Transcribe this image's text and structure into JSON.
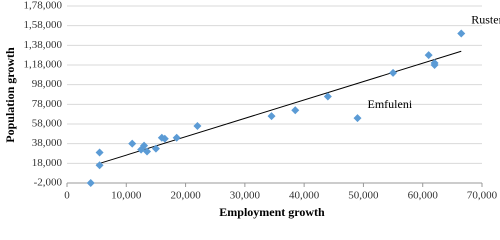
{
  "chart_data": {
    "type": "scatter",
    "x_label": "Employment growth",
    "y_label": "Population growth",
    "series": [
      {
        "color": "#5b9bd5",
        "x": [
          4000,
          5500,
          5500,
          11000,
          12500,
          13000,
          13500,
          15000,
          16000,
          16500,
          18500,
          22000,
          34500,
          38500,
          44000,
          49000,
          55000,
          61000,
          62000,
          62000,
          66500
        ],
        "values": [
          -2000,
          16000,
          29000,
          38000,
          32000,
          36000,
          30000,
          33000,
          44000,
          43000,
          44000,
          56000,
          66000,
          72000,
          86000,
          64000,
          110000,
          128000,
          120000,
          118000,
          150000
        ],
        "point_labels": [
          null,
          null,
          null,
          null,
          null,
          null,
          null,
          null,
          null,
          null,
          null,
          null,
          null,
          null,
          null,
          "Emfuleni",
          null,
          null,
          null,
          null,
          "Rustenburg"
        ]
      }
    ],
    "trendline": {
      "color": "#000000",
      "x": [
        5000,
        66500
      ],
      "y": [
        17000,
        132000
      ]
    },
    "xlim": [
      0,
      70000
    ],
    "xticks": [
      0,
      {
        "value": 10000,
        "label": "10,000"
      },
      {
        "value": 20000,
        "label": "20,000"
      },
      {
        "value": 30000,
        "label": "30,000"
      },
      {
        "value": 40000,
        "label": "40,000"
      },
      {
        "value": 50000,
        "label": "50,000"
      },
      {
        "value": 60000,
        "label": "60,000"
      },
      {
        "value": 70000,
        "label": "70,000"
      }
    ],
    "ylim": [
      -2000,
      178000
    ],
    "yticks": [
      {
        "value": -2000,
        "label": "-2,000"
      },
      {
        "value": 18000,
        "label": "18,000"
      },
      {
        "value": 38000,
        "label": "38,000"
      },
      {
        "value": 58000,
        "label": "58,000"
      },
      {
        "value": 78000,
        "label": "78,000"
      },
      {
        "value": 98000,
        "label": "98,000"
      },
      {
        "value": 118000,
        "label": "1,18,000"
      },
      {
        "value": 138000,
        "label": "1,38,000"
      },
      {
        "value": 158000,
        "label": "1,58,000"
      },
      {
        "value": 178000,
        "label": "1,78,000"
      }
    ],
    "grid": true
  }
}
